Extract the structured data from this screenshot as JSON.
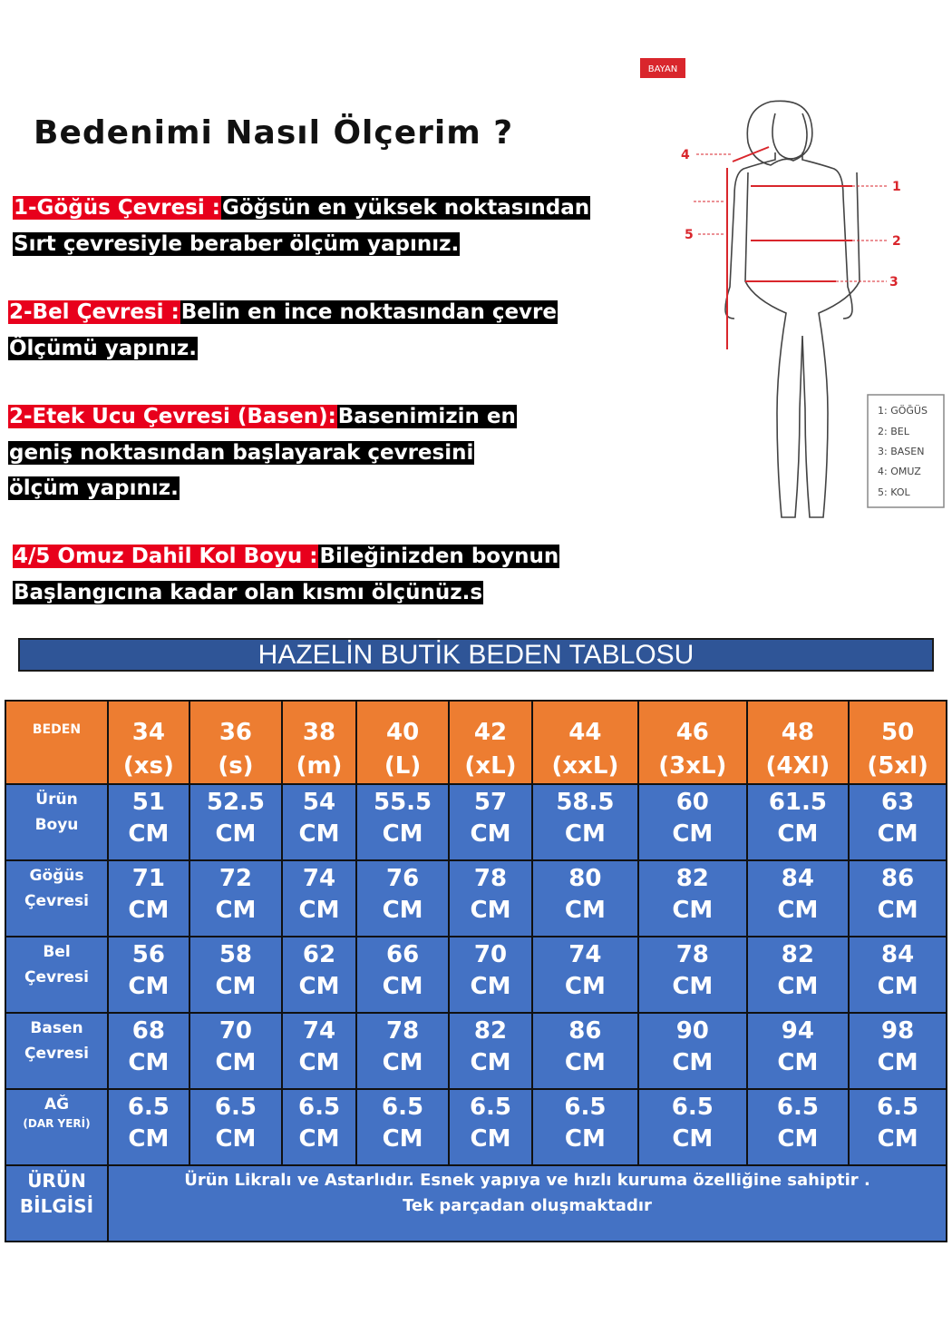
{
  "heading": "Bedenimi Nasıl Ölçerim ?",
  "instructions": [
    {
      "label": "1-Göğüs Çevresi :",
      "lines": [
        "Göğsün en yüksek noktasından",
        "Sırt çevresiyle beraber ölçüm yapınız."
      ]
    },
    {
      "label": "2-Bel Çevresi :",
      "lines": [
        "Belin en ince noktasından çevre",
        "Ölçümü yapınız."
      ]
    },
    {
      "label": "2-Etek Ucu Çevresi (Basen):",
      "lines": [
        "Basenimizin en",
        "geniş noktasından başlayarak çevresini",
        "ölçüm yapınız."
      ]
    },
    {
      "label": "4/5 Omuz Dahil Kol Boyu :",
      "lines": [
        "Bileğinizden boynun",
        "Başlangıcına kadar olan kısmı ölçünüz.s"
      ]
    }
  ],
  "figure": {
    "badge": "BAYAN",
    "markers": [
      "1",
      "2",
      "3",
      "4",
      "5"
    ],
    "legend": [
      "1: GÖĞÜS",
      "2: BEL",
      "3: BASEN",
      "4: OMUZ",
      "5: KOL"
    ],
    "accent": "#d9262c"
  },
  "banner": "HAZELİN BUTİK BEDEN TABLOSU",
  "table": {
    "header_label": "BEDEN",
    "sizes": [
      [
        "34",
        "(xs)"
      ],
      [
        "36",
        "(s)"
      ],
      [
        "38",
        "(m)"
      ],
      [
        "40",
        "(L)"
      ],
      [
        "42",
        "(xL)"
      ],
      [
        "44",
        "(xxL)"
      ],
      [
        "46",
        "(3xL)"
      ],
      [
        "48",
        "(4Xl)"
      ],
      [
        "50",
        "(5xl)"
      ]
    ],
    "unit": "CM",
    "rows": [
      {
        "label": [
          "Ürün",
          "Boyu"
        ],
        "values": [
          "51",
          "52.5",
          "54",
          "55.5",
          "57",
          "58.5",
          "60",
          "61.5",
          "63"
        ]
      },
      {
        "label": [
          "Göğüs",
          "Çevresi"
        ],
        "values": [
          "71",
          "72",
          "74",
          "76",
          "78",
          "80",
          "82",
          "84",
          "86"
        ]
      },
      {
        "label": [
          "Bel",
          "Çevresi"
        ],
        "values": [
          "56",
          "58",
          "62",
          "66",
          "70",
          "74",
          "78",
          "82",
          "84"
        ]
      },
      {
        "label": [
          "Basen",
          "Çevresi"
        ],
        "values": [
          "68",
          "70",
          "74",
          "78",
          "82",
          "86",
          "90",
          "94",
          "98"
        ]
      },
      {
        "label": [
          "AĞ",
          "(DAR YERİ)"
        ],
        "values": [
          "6.5",
          "6.5",
          "6.5",
          "6.5",
          "6.5",
          "6.5",
          "6.5",
          "6.5",
          "6.5"
        ]
      }
    ],
    "info_label": [
      "ÜRÜN",
      "BİLGİSİ"
    ],
    "info_text": [
      "Ürün Likralı ve Astarlıdır. Esnek yapıya ve hızlı kuruma özelliğine sahiptir .",
      "Tek parçadan oluşmaktadır"
    ],
    "colors": {
      "header": "#ed7d31",
      "body": "#4472c4",
      "banner": "#2f5597"
    }
  }
}
